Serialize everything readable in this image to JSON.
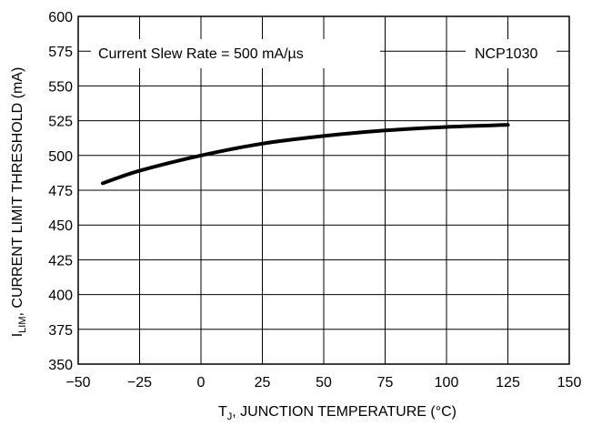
{
  "chart_data": {
    "type": "line",
    "xlabel": "T_J, JUNCTION TEMPERATURE (°C)",
    "xlabel_parts": {
      "main": "T",
      "sub": "J",
      "rest": ", JUNCTION TEMPERATURE (°C)"
    },
    "ylabel": "I_LIM, CURRENT LIMIT THRESHOLD (mA)",
    "ylabel_parts": {
      "main": "I",
      "sub": "LIM",
      "rest": ", CURRENT LIMIT THRESHOLD (mA)"
    },
    "xlim": [
      -50,
      150
    ],
    "ylim": [
      350,
      600
    ],
    "x_ticks": [
      -50,
      -25,
      0,
      25,
      50,
      75,
      100,
      125,
      150
    ],
    "x_tick_labels": [
      "−50",
      "−25",
      "0",
      "25",
      "50",
      "75",
      "100",
      "125",
      "150"
    ],
    "y_ticks": [
      350,
      375,
      400,
      425,
      450,
      475,
      500,
      525,
      550,
      575,
      600
    ],
    "y_tick_labels": [
      "350",
      "375",
      "400",
      "425",
      "450",
      "475",
      "500",
      "525",
      "550",
      "575",
      "600"
    ],
    "grid": true,
    "annotations": [
      "Current Slew Rate = 500 mA/µs",
      "NCP1030"
    ],
    "series": [
      {
        "x": [
          -40,
          -25,
          0,
          25,
          50,
          75,
          100,
          125
        ],
        "values": [
          480,
          489,
          500,
          508.5,
          514,
          518,
          520.5,
          522
        ]
      }
    ],
    "line_color": "#000000"
  }
}
